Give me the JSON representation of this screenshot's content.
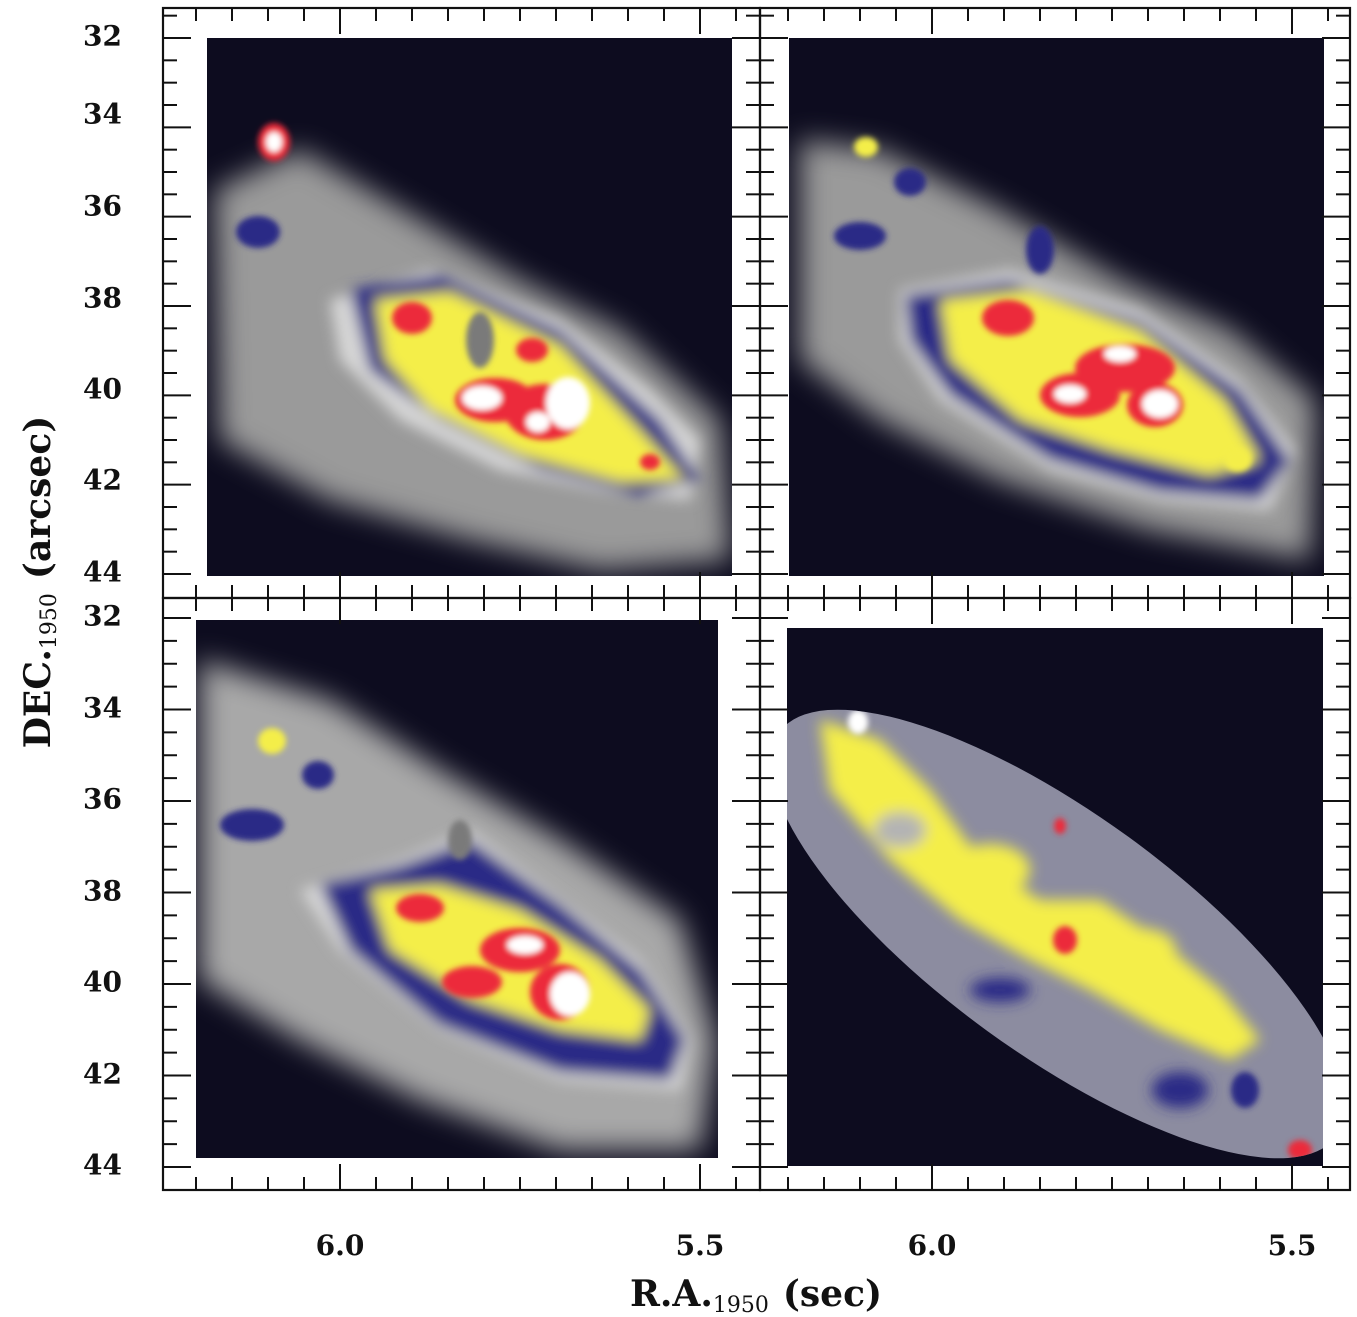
{
  "chart_data": {
    "type": "heatmap",
    "layout": "2x2 panel grid with shared axes",
    "xlabel": "R.A.",
    "xlabel_subscript": "1950",
    "xlabel_unit": "(sec)",
    "ylabel": "DEC.",
    "ylabel_subscript": "1950",
    "ylabel_unit": "(arcsec)",
    "x_ticks": [
      "6.0",
      "5.5"
    ],
    "x_tick_values": [
      6.0,
      5.5
    ],
    "x_range": [
      6.22,
      5.45
    ],
    "y_ticks": [
      "32",
      "34",
      "36",
      "38",
      "40",
      "42",
      "44"
    ],
    "y_tick_values": [
      32,
      34,
      36,
      38,
      40,
      42,
      44
    ],
    "y_range": [
      31.7,
      44.4
    ],
    "y_inverted": true,
    "colormap": [
      "#0d0c1f",
      "#7a7a7a",
      "#d8d8d8",
      "#2a2a8a",
      "#8a8a8a",
      "#f5f04a",
      "#ee2a3a",
      "#ffffff"
    ],
    "panels": [
      {
        "position": "top-left",
        "mask": "rectangle"
      },
      {
        "position": "top-right",
        "mask": "rectangle"
      },
      {
        "position": "bottom-left",
        "mask": "rectangle"
      },
      {
        "position": "bottom-right",
        "mask": "ellipse"
      }
    ]
  }
}
